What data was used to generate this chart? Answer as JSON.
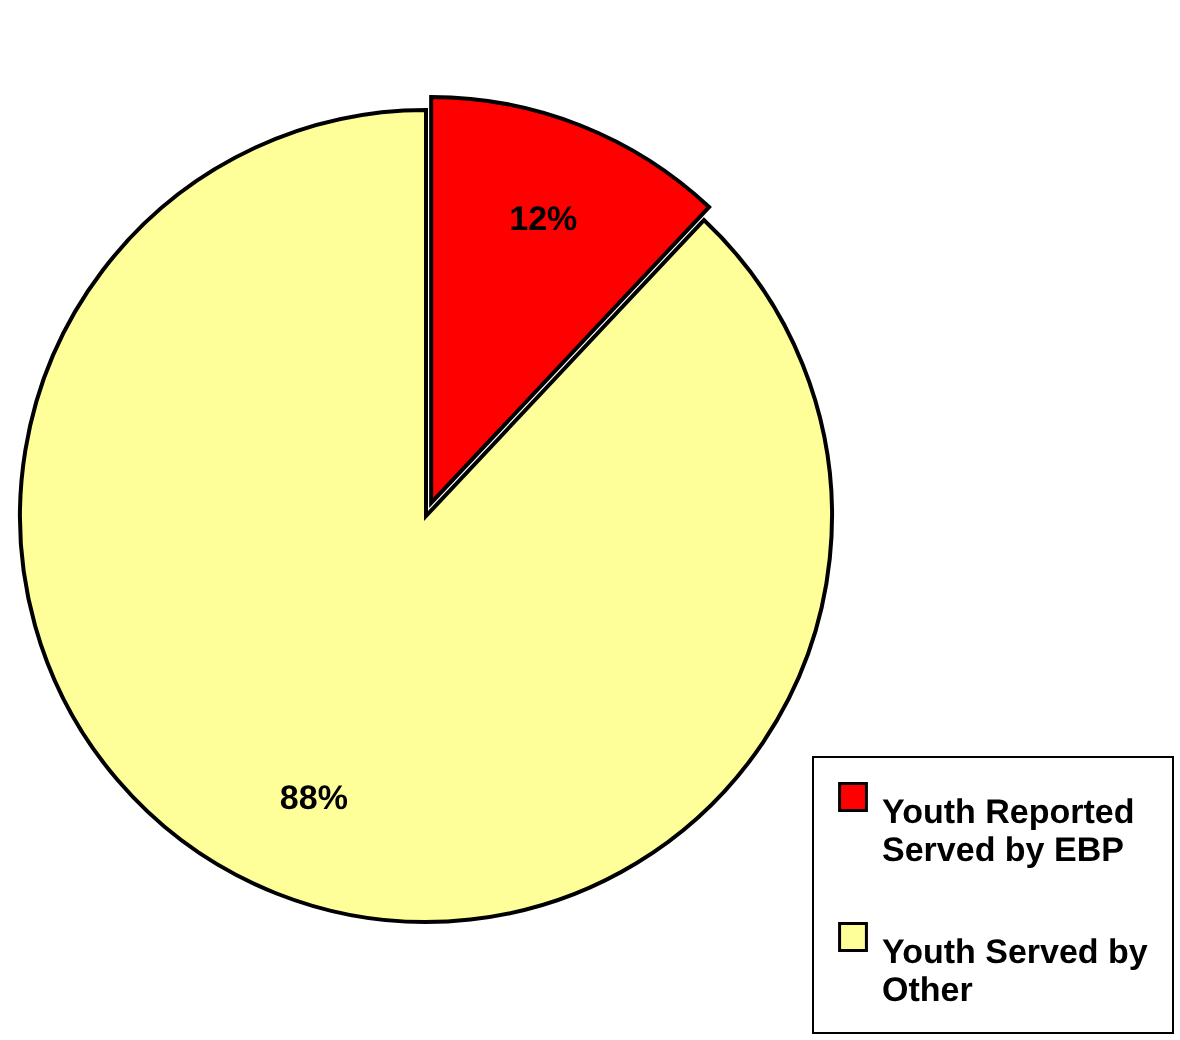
{
  "chart_data": {
    "type": "pie",
    "categories": [
      "Youth Reported Served by EBP",
      "Youth Served by Other"
    ],
    "values": [
      12,
      88
    ],
    "colors": [
      "#ff0000",
      "#ffff99"
    ],
    "value_labels": [
      "12%",
      "88%"
    ],
    "legend": "bottom right"
  }
}
